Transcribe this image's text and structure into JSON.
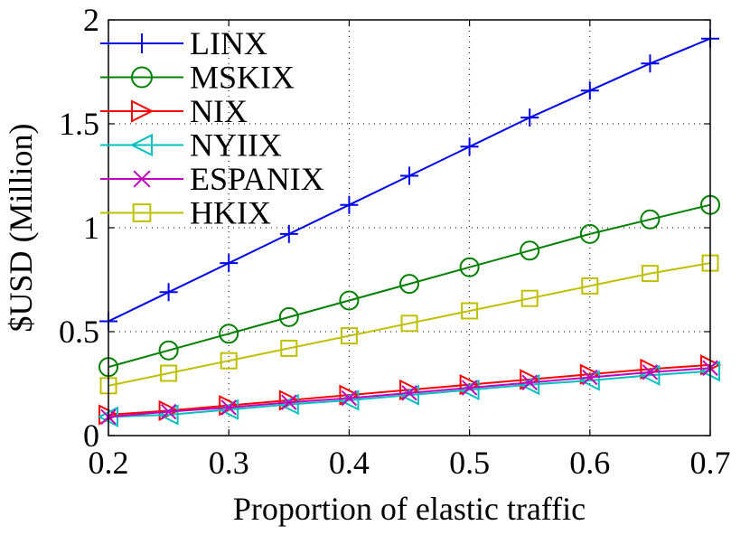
{
  "chart_data": {
    "type": "line",
    "title": "",
    "xlabel": "Proportion of elastic traffic",
    "ylabel": "$USD (Million)",
    "xlim": [
      0.2,
      0.7
    ],
    "ylim": [
      0,
      2
    ],
    "xticks": [
      "0.2",
      "0.3",
      "0.4",
      "0.5",
      "0.6",
      "0.7"
    ],
    "yticks": [
      "0",
      "0.5",
      "1",
      "1.5",
      "2"
    ],
    "grid": true,
    "legend_position": "top-left",
    "x": [
      0.2,
      0.25,
      0.3,
      0.35,
      0.4,
      0.45,
      0.5,
      0.55,
      0.6,
      0.65,
      0.7
    ],
    "series": [
      {
        "name": "LINX",
        "color": "#0000ee",
        "marker": "plus",
        "values": [
          0.55,
          0.69,
          0.83,
          0.97,
          1.11,
          1.25,
          1.39,
          1.53,
          1.66,
          1.79,
          1.91
        ]
      },
      {
        "name": "MSKIX",
        "color": "#008000",
        "marker": "circle",
        "values": [
          0.33,
          0.41,
          0.49,
          0.57,
          0.65,
          0.73,
          0.81,
          0.89,
          0.97,
          1.04,
          1.11
        ]
      },
      {
        "name": "NIX",
        "color": "#ff0000",
        "marker": "triangle-right",
        "values": [
          0.1,
          0.12,
          0.145,
          0.17,
          0.195,
          0.22,
          0.245,
          0.27,
          0.295,
          0.32,
          0.34
        ]
      },
      {
        "name": "NYIIX",
        "color": "#00bfbf",
        "marker": "triangle-left",
        "values": [
          0.09,
          0.1,
          0.125,
          0.15,
          0.17,
          0.195,
          0.22,
          0.245,
          0.265,
          0.29,
          0.31
        ]
      },
      {
        "name": "ESPANIX",
        "color": "#bf00bf",
        "marker": "x",
        "values": [
          0.09,
          0.115,
          0.135,
          0.16,
          0.18,
          0.205,
          0.23,
          0.255,
          0.28,
          0.305,
          0.325
        ]
      },
      {
        "name": "HKIX",
        "color": "#bfbf00",
        "marker": "square",
        "values": [
          0.24,
          0.3,
          0.36,
          0.42,
          0.48,
          0.54,
          0.6,
          0.66,
          0.72,
          0.78,
          0.83
        ]
      }
    ]
  }
}
